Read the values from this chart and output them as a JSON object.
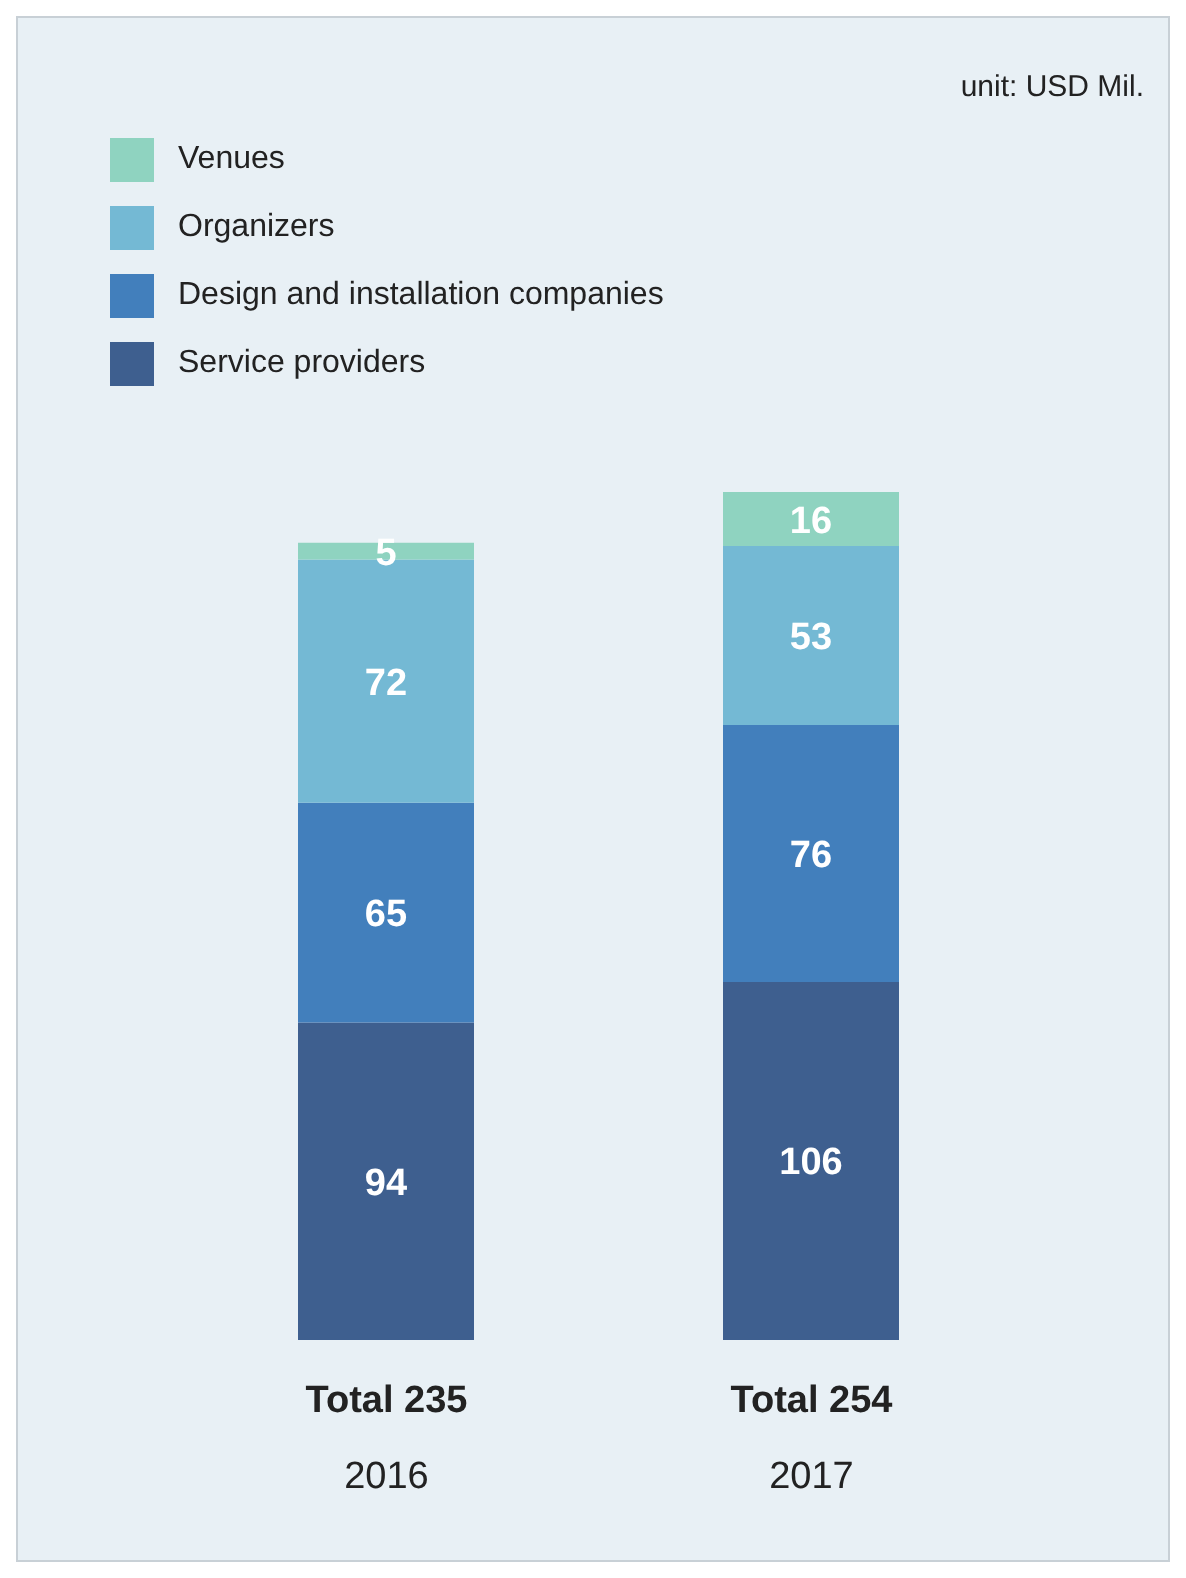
{
  "chart_data": {
    "type": "bar",
    "stacked": true,
    "categories": [
      "2016",
      "2017"
    ],
    "series": [
      {
        "name": "Service providers",
        "color": "#3e5f8f",
        "values": [
          94,
          106
        ]
      },
      {
        "name": "Design and installation companies",
        "color": "#427fbc",
        "values": [
          65,
          76
        ]
      },
      {
        "name": "Organizers",
        "color": "#74b9d4",
        "values": [
          72,
          53
        ]
      },
      {
        "name": "Venues",
        "color": "#8fd3c0",
        "values": [
          5,
          16
        ]
      }
    ],
    "data_labels": true,
    "totals": [
      "Total 235",
      "Total 254"
    ],
    "legend": "top left",
    "tick_labels": "x",
    "annotations": [
      "unit: USD Mil."
    ]
  }
}
